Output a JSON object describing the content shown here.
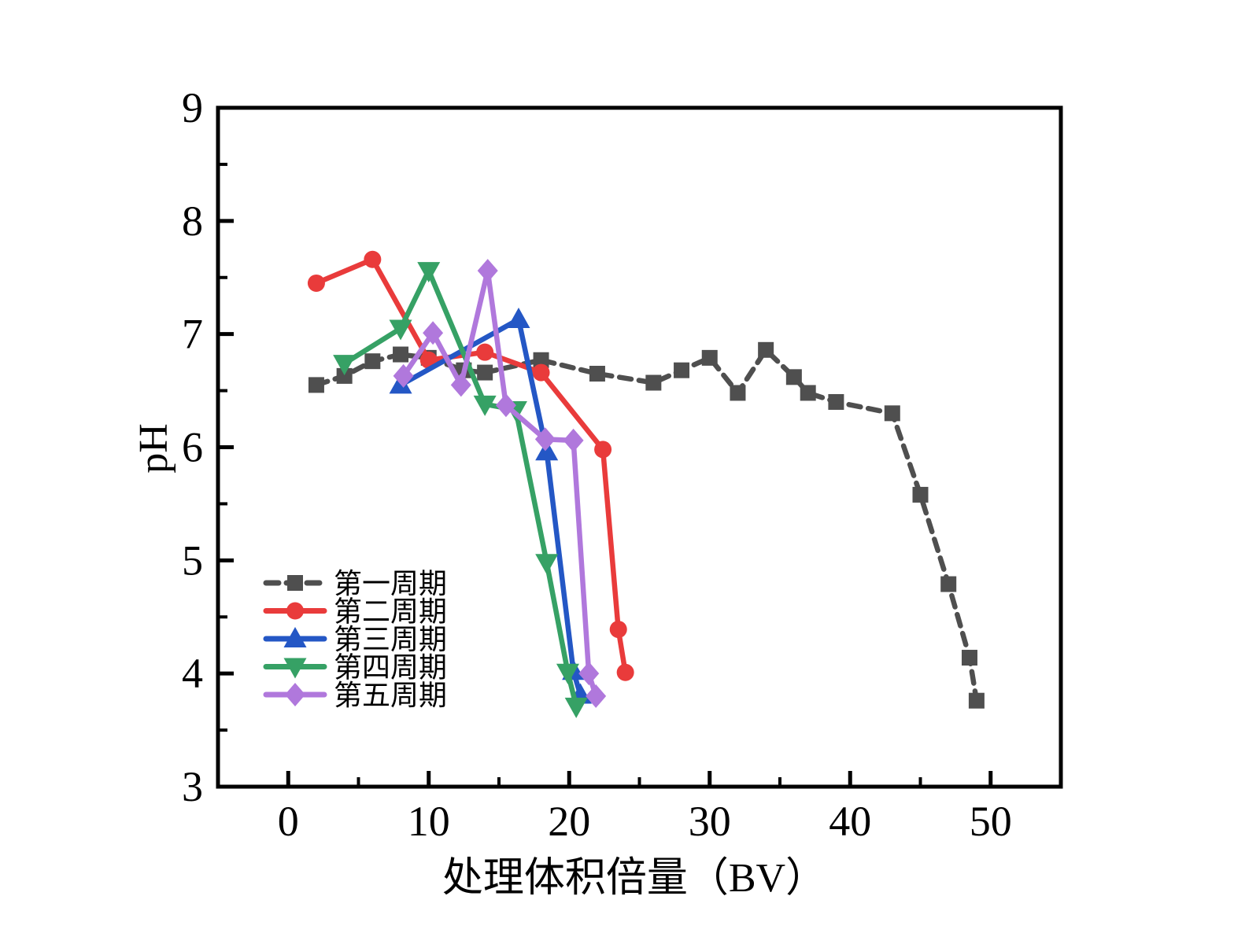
{
  "chart_data": {
    "type": "line",
    "title": "",
    "xlabel": "处理体积倍量（BV）",
    "ylabel": "pH",
    "xlim": [
      -5,
      55
    ],
    "ylim": [
      3,
      9
    ],
    "x_major_ticks": [
      0,
      10,
      20,
      30,
      40,
      50
    ],
    "x_minor_ticks": [
      5,
      15,
      25,
      35,
      45
    ],
    "y_major_ticks": [
      3,
      4,
      5,
      6,
      7,
      8,
      9
    ],
    "y_minor_ticks": [
      3.5,
      4.5,
      5.5,
      6.5,
      7.5,
      8.5
    ],
    "grid": false,
    "legend_position": "inside-center-left",
    "frame_color": "#000000",
    "background_color": "#ffffff",
    "series": [
      {
        "name": "第一周期",
        "color": "#4f4f4f",
        "marker": "square",
        "line_style": "dashed",
        "points": [
          [
            2,
            6.55
          ],
          [
            4,
            6.63
          ],
          [
            6,
            6.76
          ],
          [
            8,
            6.82
          ],
          [
            10,
            6.79
          ],
          [
            12.5,
            6.68
          ],
          [
            14,
            6.66
          ],
          [
            18,
            6.77
          ],
          [
            22,
            6.65
          ],
          [
            26,
            6.57
          ],
          [
            28,
            6.68
          ],
          [
            30,
            6.79
          ],
          [
            32,
            6.48
          ],
          [
            34,
            6.86
          ],
          [
            36,
            6.62
          ],
          [
            37,
            6.48
          ],
          [
            39,
            6.4
          ],
          [
            43,
            6.3
          ],
          [
            45,
            5.58
          ],
          [
            47,
            4.79
          ],
          [
            48.5,
            4.14
          ],
          [
            49,
            3.76
          ]
        ]
      },
      {
        "name": "第二周期",
        "color": "#e93b3b",
        "marker": "circle",
        "line_style": "solid",
        "points": [
          [
            2,
            7.45
          ],
          [
            6,
            7.66
          ],
          [
            10,
            6.77
          ],
          [
            14,
            6.84
          ],
          [
            18,
            6.66
          ],
          [
            22.4,
            5.98
          ],
          [
            23.5,
            4.39
          ],
          [
            24,
            4.01
          ]
        ]
      },
      {
        "name": "第三周期",
        "color": "#2457c5",
        "marker": "triangle-up",
        "line_style": "solid",
        "points": [
          [
            8,
            6.55
          ],
          [
            16.4,
            7.13
          ],
          [
            18.4,
            5.96
          ],
          [
            20.3,
            4.02
          ],
          [
            20.8,
            3.81
          ]
        ]
      },
      {
        "name": "第四周期",
        "color": "#36a165",
        "marker": "triangle-down",
        "line_style": "solid",
        "points": [
          [
            4,
            6.74
          ],
          [
            8,
            7.05
          ],
          [
            10,
            7.56
          ],
          [
            14,
            6.38
          ],
          [
            16.2,
            6.33
          ],
          [
            18.4,
            4.98
          ],
          [
            19.9,
            4.01
          ],
          [
            20.5,
            3.71
          ]
        ]
      },
      {
        "name": "第五周期",
        "color": "#b078dc",
        "marker": "diamond",
        "line_style": "solid",
        "points": [
          [
            8.2,
            6.63
          ],
          [
            10.3,
            7.01
          ],
          [
            12.3,
            6.55
          ],
          [
            14.2,
            7.56
          ],
          [
            15.5,
            6.37
          ],
          [
            18.3,
            6.07
          ],
          [
            20.3,
            6.06
          ],
          [
            21.4,
            4.0
          ],
          [
            21.9,
            3.8
          ]
        ]
      }
    ]
  }
}
